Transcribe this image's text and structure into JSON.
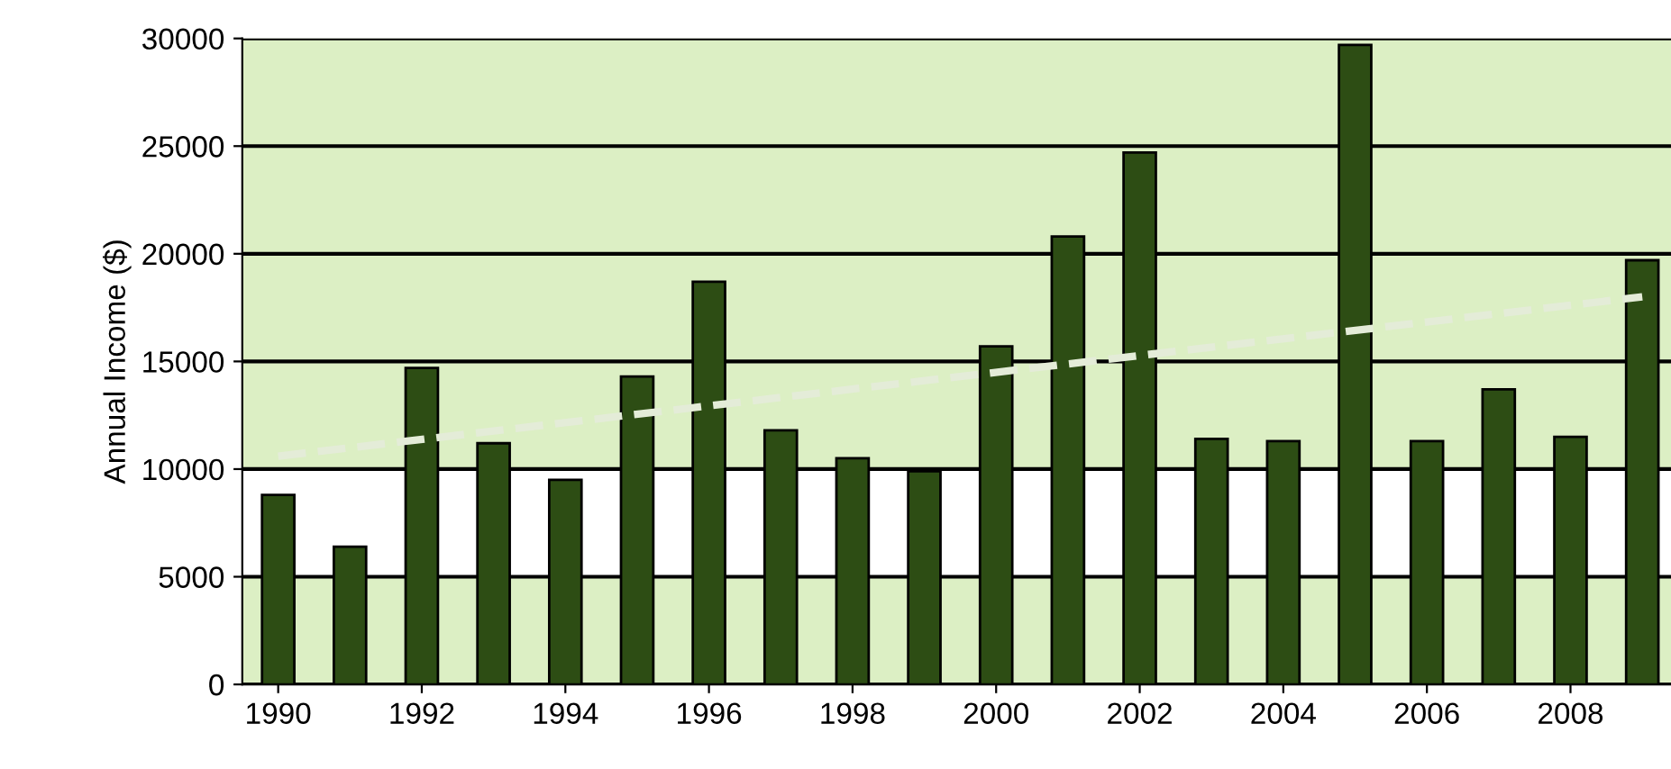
{
  "chart_data": {
    "type": "bar",
    "ylabel": "Annual Income ($)",
    "x": [
      1990,
      1991,
      1992,
      1993,
      1994,
      1995,
      1996,
      1997,
      1998,
      1999,
      2000,
      2001,
      2002,
      2003,
      2004,
      2005,
      2006,
      2007,
      2008,
      2009
    ],
    "series": [
      {
        "color": "#2d4d14",
        "values": [
          8800,
          6400,
          14700,
          11200,
          9500,
          14300,
          18700,
          11800,
          10500,
          9900,
          15700,
          20800,
          24700,
          11400,
          11300,
          29700,
          11300,
          13700,
          11500,
          19700
        ]
      },
      {
        "type": "line",
        "color": "#e4ecd8",
        "line_style": "dashed",
        "x": [
          1990,
          2009
        ],
        "values": [
          10600,
          18000
        ]
      }
    ],
    "xlim": [
      1989.5,
      2009.4
    ],
    "xticks": [
      1990,
      1992,
      1994,
      1996,
      1998,
      2000,
      2002,
      2004,
      2006,
      2008
    ],
    "ylim": [
      0,
      30000
    ],
    "yticks": [
      0,
      5000,
      10000,
      15000,
      20000,
      25000,
      30000
    ],
    "grid": "y",
    "bands": [
      {
        "axis": "y",
        "from": 5000,
        "to": 10000,
        "color": "#ffffff"
      }
    ]
  }
}
